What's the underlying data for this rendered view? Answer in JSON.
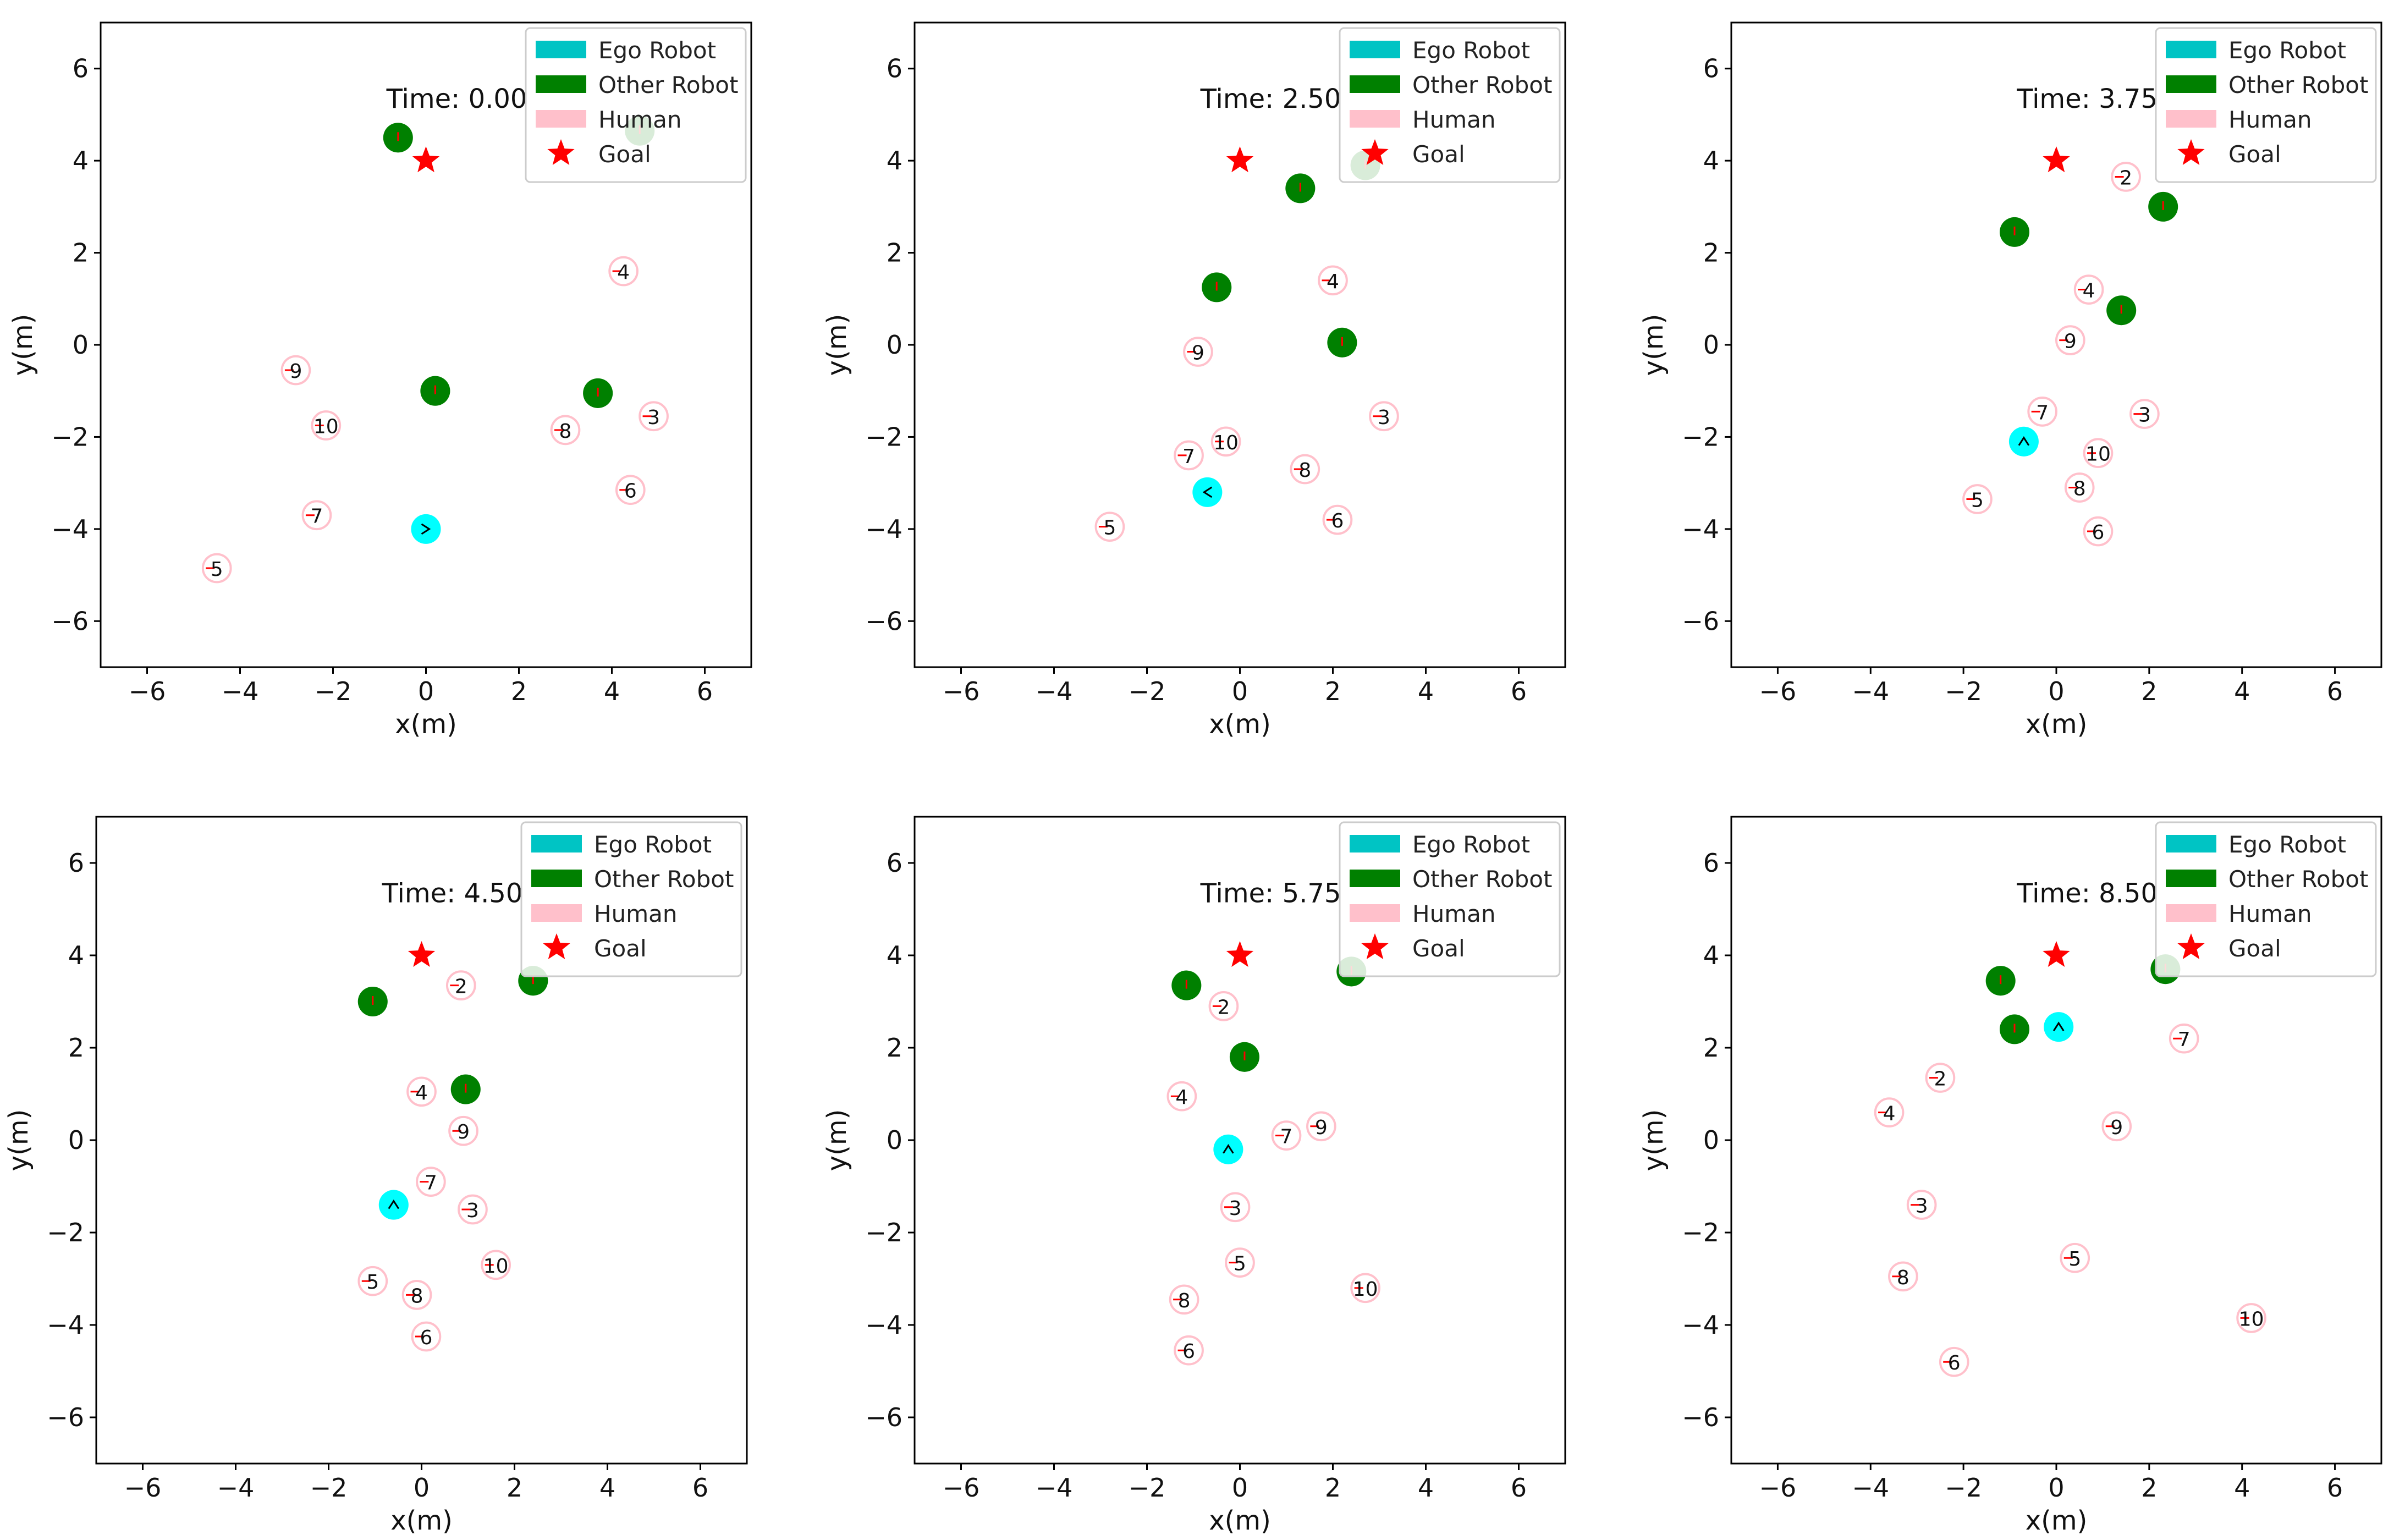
{
  "figure": {
    "background": "#ffffff"
  },
  "style": {
    "ego_color": "#00ffff",
    "ego_legend_color": "#00c4c4",
    "robot_color": "#008000",
    "human_fill": "#ffffff",
    "human_edge": "#ffc0cb",
    "human_legend_color": "#ffc0cb",
    "goal_color": "#ff0000",
    "arrow_color": "#ff0000",
    "ego_arrow_color": "#000000"
  },
  "legend": {
    "location": "upper-right",
    "entries": [
      "Ego Robot",
      "Other Robot",
      "Human",
      "Goal"
    ]
  },
  "chart_data": [
    {
      "type": "scatter",
      "time_label": "Time: 0.00",
      "xlabel": "x(m)",
      "ylabel": "y(m)",
      "xlim": [
        -7,
        7
      ],
      "ylim": [
        -7,
        7
      ],
      "xticks": [
        -6,
        -4,
        -2,
        0,
        2,
        4,
        6
      ],
      "yticks": [
        -6,
        -4,
        -2,
        0,
        2,
        4,
        6
      ],
      "xtick_labels": [
        "−6",
        "−4",
        "−2",
        "0",
        "2",
        "4",
        "6"
      ],
      "ytick_labels": [
        "−6",
        "−4",
        "−2",
        "0",
        "2",
        "4",
        "6"
      ],
      "goal": [
        0,
        4
      ],
      "ego": {
        "x": 0,
        "y": -4,
        "heading": "right"
      },
      "others": [
        {
          "x": -0.6,
          "y": 4.5
        },
        {
          "x": 0.2,
          "y": -1.0
        },
        {
          "x": 3.7,
          "y": -1.05
        },
        {
          "x": 4.6,
          "y": 4.65
        }
      ],
      "humans": [
        {
          "id": "3",
          "x": 4.9,
          "y": -1.55
        },
        {
          "id": "4",
          "x": 4.25,
          "y": 1.6
        },
        {
          "id": "5",
          "x": -4.5,
          "y": -4.85
        },
        {
          "id": "6",
          "x": 4.4,
          "y": -3.15
        },
        {
          "id": "7",
          "x": -2.35,
          "y": -3.7
        },
        {
          "id": "8",
          "x": 3.0,
          "y": -1.85
        },
        {
          "id": "9",
          "x": -2.8,
          "y": -0.55
        },
        {
          "id": "10",
          "x": -2.15,
          "y": -1.75
        }
      ]
    },
    {
      "type": "scatter",
      "time_label": "Time: 2.50",
      "xlabel": "x(m)",
      "ylabel": "y(m)",
      "xlim": [
        -7,
        7
      ],
      "ylim": [
        -7,
        7
      ],
      "xticks": [
        -6,
        -4,
        -2,
        0,
        2,
        4,
        6
      ],
      "yticks": [
        -6,
        -4,
        -2,
        0,
        2,
        4,
        6
      ],
      "xtick_labels": [
        "−6",
        "−4",
        "−2",
        "0",
        "2",
        "4",
        "6"
      ],
      "ytick_labels": [
        "−6",
        "−4",
        "−2",
        "0",
        "2",
        "4",
        "6"
      ],
      "goal": [
        0,
        4
      ],
      "ego": {
        "x": -0.7,
        "y": -3.2,
        "heading": "left"
      },
      "others": [
        {
          "x": 1.3,
          "y": 3.4
        },
        {
          "x": -0.5,
          "y": 1.25
        },
        {
          "x": 2.2,
          "y": 0.05
        },
        {
          "x": 2.7,
          "y": 3.9
        }
      ],
      "humans": [
        {
          "id": "3",
          "x": 3.1,
          "y": -1.55
        },
        {
          "id": "4",
          "x": 2.0,
          "y": 1.4
        },
        {
          "id": "5",
          "x": -2.8,
          "y": -3.95
        },
        {
          "id": "6",
          "x": 2.1,
          "y": -3.8
        },
        {
          "id": "7",
          "x": -1.1,
          "y": -2.4
        },
        {
          "id": "8",
          "x": 1.4,
          "y": -2.7
        },
        {
          "id": "9",
          "x": -0.9,
          "y": -0.15
        },
        {
          "id": "10",
          "x": -0.3,
          "y": -2.1
        }
      ]
    },
    {
      "type": "scatter",
      "time_label": "Time: 3.75",
      "xlabel": "x(m)",
      "ylabel": "y(m)",
      "xlim": [
        -7,
        7
      ],
      "ylim": [
        -7,
        7
      ],
      "xticks": [
        -6,
        -4,
        -2,
        0,
        2,
        4,
        6
      ],
      "yticks": [
        -6,
        -4,
        -2,
        0,
        2,
        4,
        6
      ],
      "xtick_labels": [
        "−6",
        "−4",
        "−2",
        "0",
        "2",
        "4",
        "6"
      ],
      "ytick_labels": [
        "−6",
        "−4",
        "−2",
        "0",
        "2",
        "4",
        "6"
      ],
      "goal": [
        0,
        4
      ],
      "ego": {
        "x": -0.7,
        "y": -2.1,
        "heading": "up"
      },
      "others": [
        {
          "x": -0.9,
          "y": 2.45
        },
        {
          "x": 2.3,
          "y": 3.0
        },
        {
          "x": 1.4,
          "y": 0.75
        }
      ],
      "humans": [
        {
          "id": "2",
          "x": 1.5,
          "y": 3.65
        },
        {
          "id": "3",
          "x": 1.9,
          "y": -1.5
        },
        {
          "id": "4",
          "x": 0.7,
          "y": 1.2
        },
        {
          "id": "5",
          "x": -1.7,
          "y": -3.35
        },
        {
          "id": "6",
          "x": 0.9,
          "y": -4.05
        },
        {
          "id": "7",
          "x": -0.3,
          "y": -1.45
        },
        {
          "id": "8",
          "x": 0.5,
          "y": -3.1
        },
        {
          "id": "9",
          "x": 0.3,
          "y": 0.1
        },
        {
          "id": "10",
          "x": 0.9,
          "y": -2.35
        }
      ]
    },
    {
      "type": "scatter",
      "time_label": "Time: 4.50",
      "xlabel": "x(m)",
      "ylabel": "y(m)",
      "xlim": [
        -7,
        7
      ],
      "ylim": [
        -7,
        7
      ],
      "xticks": [
        -6,
        -4,
        -2,
        0,
        2,
        4,
        6
      ],
      "yticks": [
        -6,
        -4,
        -2,
        0,
        2,
        4,
        6
      ],
      "xtick_labels": [
        "−6",
        "−4",
        "−2",
        "0",
        "2",
        "4",
        "6"
      ],
      "ytick_labels": [
        "−6",
        "−4",
        "−2",
        "0",
        "2",
        "4",
        "6"
      ],
      "goal": [
        0,
        4
      ],
      "ego": {
        "x": -0.6,
        "y": -1.4,
        "heading": "up"
      },
      "others": [
        {
          "x": -1.05,
          "y": 3.0
        },
        {
          "x": 2.4,
          "y": 3.45
        },
        {
          "x": 0.95,
          "y": 1.1
        }
      ],
      "humans": [
        {
          "id": "2",
          "x": 0.85,
          "y": 3.35
        },
        {
          "id": "3",
          "x": 1.1,
          "y": -1.5
        },
        {
          "id": "4",
          "x": 0.0,
          "y": 1.05
        },
        {
          "id": "5",
          "x": -1.05,
          "y": -3.05
        },
        {
          "id": "6",
          "x": 0.1,
          "y": -4.25
        },
        {
          "id": "7",
          "x": 0.2,
          "y": -0.9
        },
        {
          "id": "8",
          "x": -0.1,
          "y": -3.35
        },
        {
          "id": "9",
          "x": 0.9,
          "y": 0.2
        },
        {
          "id": "10",
          "x": 1.6,
          "y": -2.7
        }
      ]
    },
    {
      "type": "scatter",
      "time_label": "Time: 5.75",
      "xlabel": "x(m)",
      "ylabel": "y(m)",
      "xlim": [
        -7,
        7
      ],
      "ylim": [
        -7,
        7
      ],
      "xticks": [
        -6,
        -4,
        -2,
        0,
        2,
        4,
        6
      ],
      "yticks": [
        -6,
        -4,
        -2,
        0,
        2,
        4,
        6
      ],
      "xtick_labels": [
        "−6",
        "−4",
        "−2",
        "0",
        "2",
        "4",
        "6"
      ],
      "ytick_labels": [
        "−6",
        "−4",
        "−2",
        "0",
        "2",
        "4",
        "6"
      ],
      "goal": [
        0,
        4
      ],
      "ego": {
        "x": -0.25,
        "y": -0.2,
        "heading": "up"
      },
      "others": [
        {
          "x": -1.15,
          "y": 3.35
        },
        {
          "x": 0.1,
          "y": 1.8
        },
        {
          "x": 2.4,
          "y": 3.65
        }
      ],
      "humans": [
        {
          "id": "2",
          "x": -0.35,
          "y": 2.9
        },
        {
          "id": "3",
          "x": -0.1,
          "y": -1.45
        },
        {
          "id": "4",
          "x": -1.25,
          "y": 0.95
        },
        {
          "id": "5",
          "x": 0.0,
          "y": -2.65
        },
        {
          "id": "6",
          "x": -1.1,
          "y": -4.55
        },
        {
          "id": "7",
          "x": 1.0,
          "y": 0.1
        },
        {
          "id": "8",
          "x": -1.2,
          "y": -3.45
        },
        {
          "id": "9",
          "x": 1.75,
          "y": 0.3
        },
        {
          "id": "10",
          "x": 2.7,
          "y": -3.2
        }
      ]
    },
    {
      "type": "scatter",
      "time_label": "Time: 8.50",
      "xlabel": "x(m)",
      "ylabel": "y(m)",
      "xlim": [
        -7,
        7
      ],
      "ylim": [
        -7,
        7
      ],
      "xticks": [
        -6,
        -4,
        -2,
        0,
        2,
        4,
        6
      ],
      "yticks": [
        -6,
        -4,
        -2,
        0,
        2,
        4,
        6
      ],
      "xtick_labels": [
        "−6",
        "−4",
        "−2",
        "0",
        "2",
        "4",
        "6"
      ],
      "ytick_labels": [
        "−6",
        "−4",
        "−2",
        "0",
        "2",
        "4",
        "6"
      ],
      "goal": [
        0,
        4
      ],
      "ego": {
        "x": 0.05,
        "y": 2.45,
        "heading": "up"
      },
      "others": [
        {
          "x": -1.2,
          "y": 3.45
        },
        {
          "x": -0.9,
          "y": 2.4
        },
        {
          "x": 2.35,
          "y": 3.7
        }
      ],
      "humans": [
        {
          "id": "2",
          "x": -2.5,
          "y": 1.35
        },
        {
          "id": "3",
          "x": -2.9,
          "y": -1.4
        },
        {
          "id": "4",
          "x": -3.6,
          "y": 0.6
        },
        {
          "id": "5",
          "x": 0.4,
          "y": -2.55
        },
        {
          "id": "6",
          "x": -2.2,
          "y": -4.8
        },
        {
          "id": "7",
          "x": 2.75,
          "y": 2.2
        },
        {
          "id": "8",
          "x": -3.3,
          "y": -2.95
        },
        {
          "id": "9",
          "x": 1.3,
          "y": 0.3
        },
        {
          "id": "10",
          "x": 4.2,
          "y": -3.85
        }
      ]
    }
  ]
}
